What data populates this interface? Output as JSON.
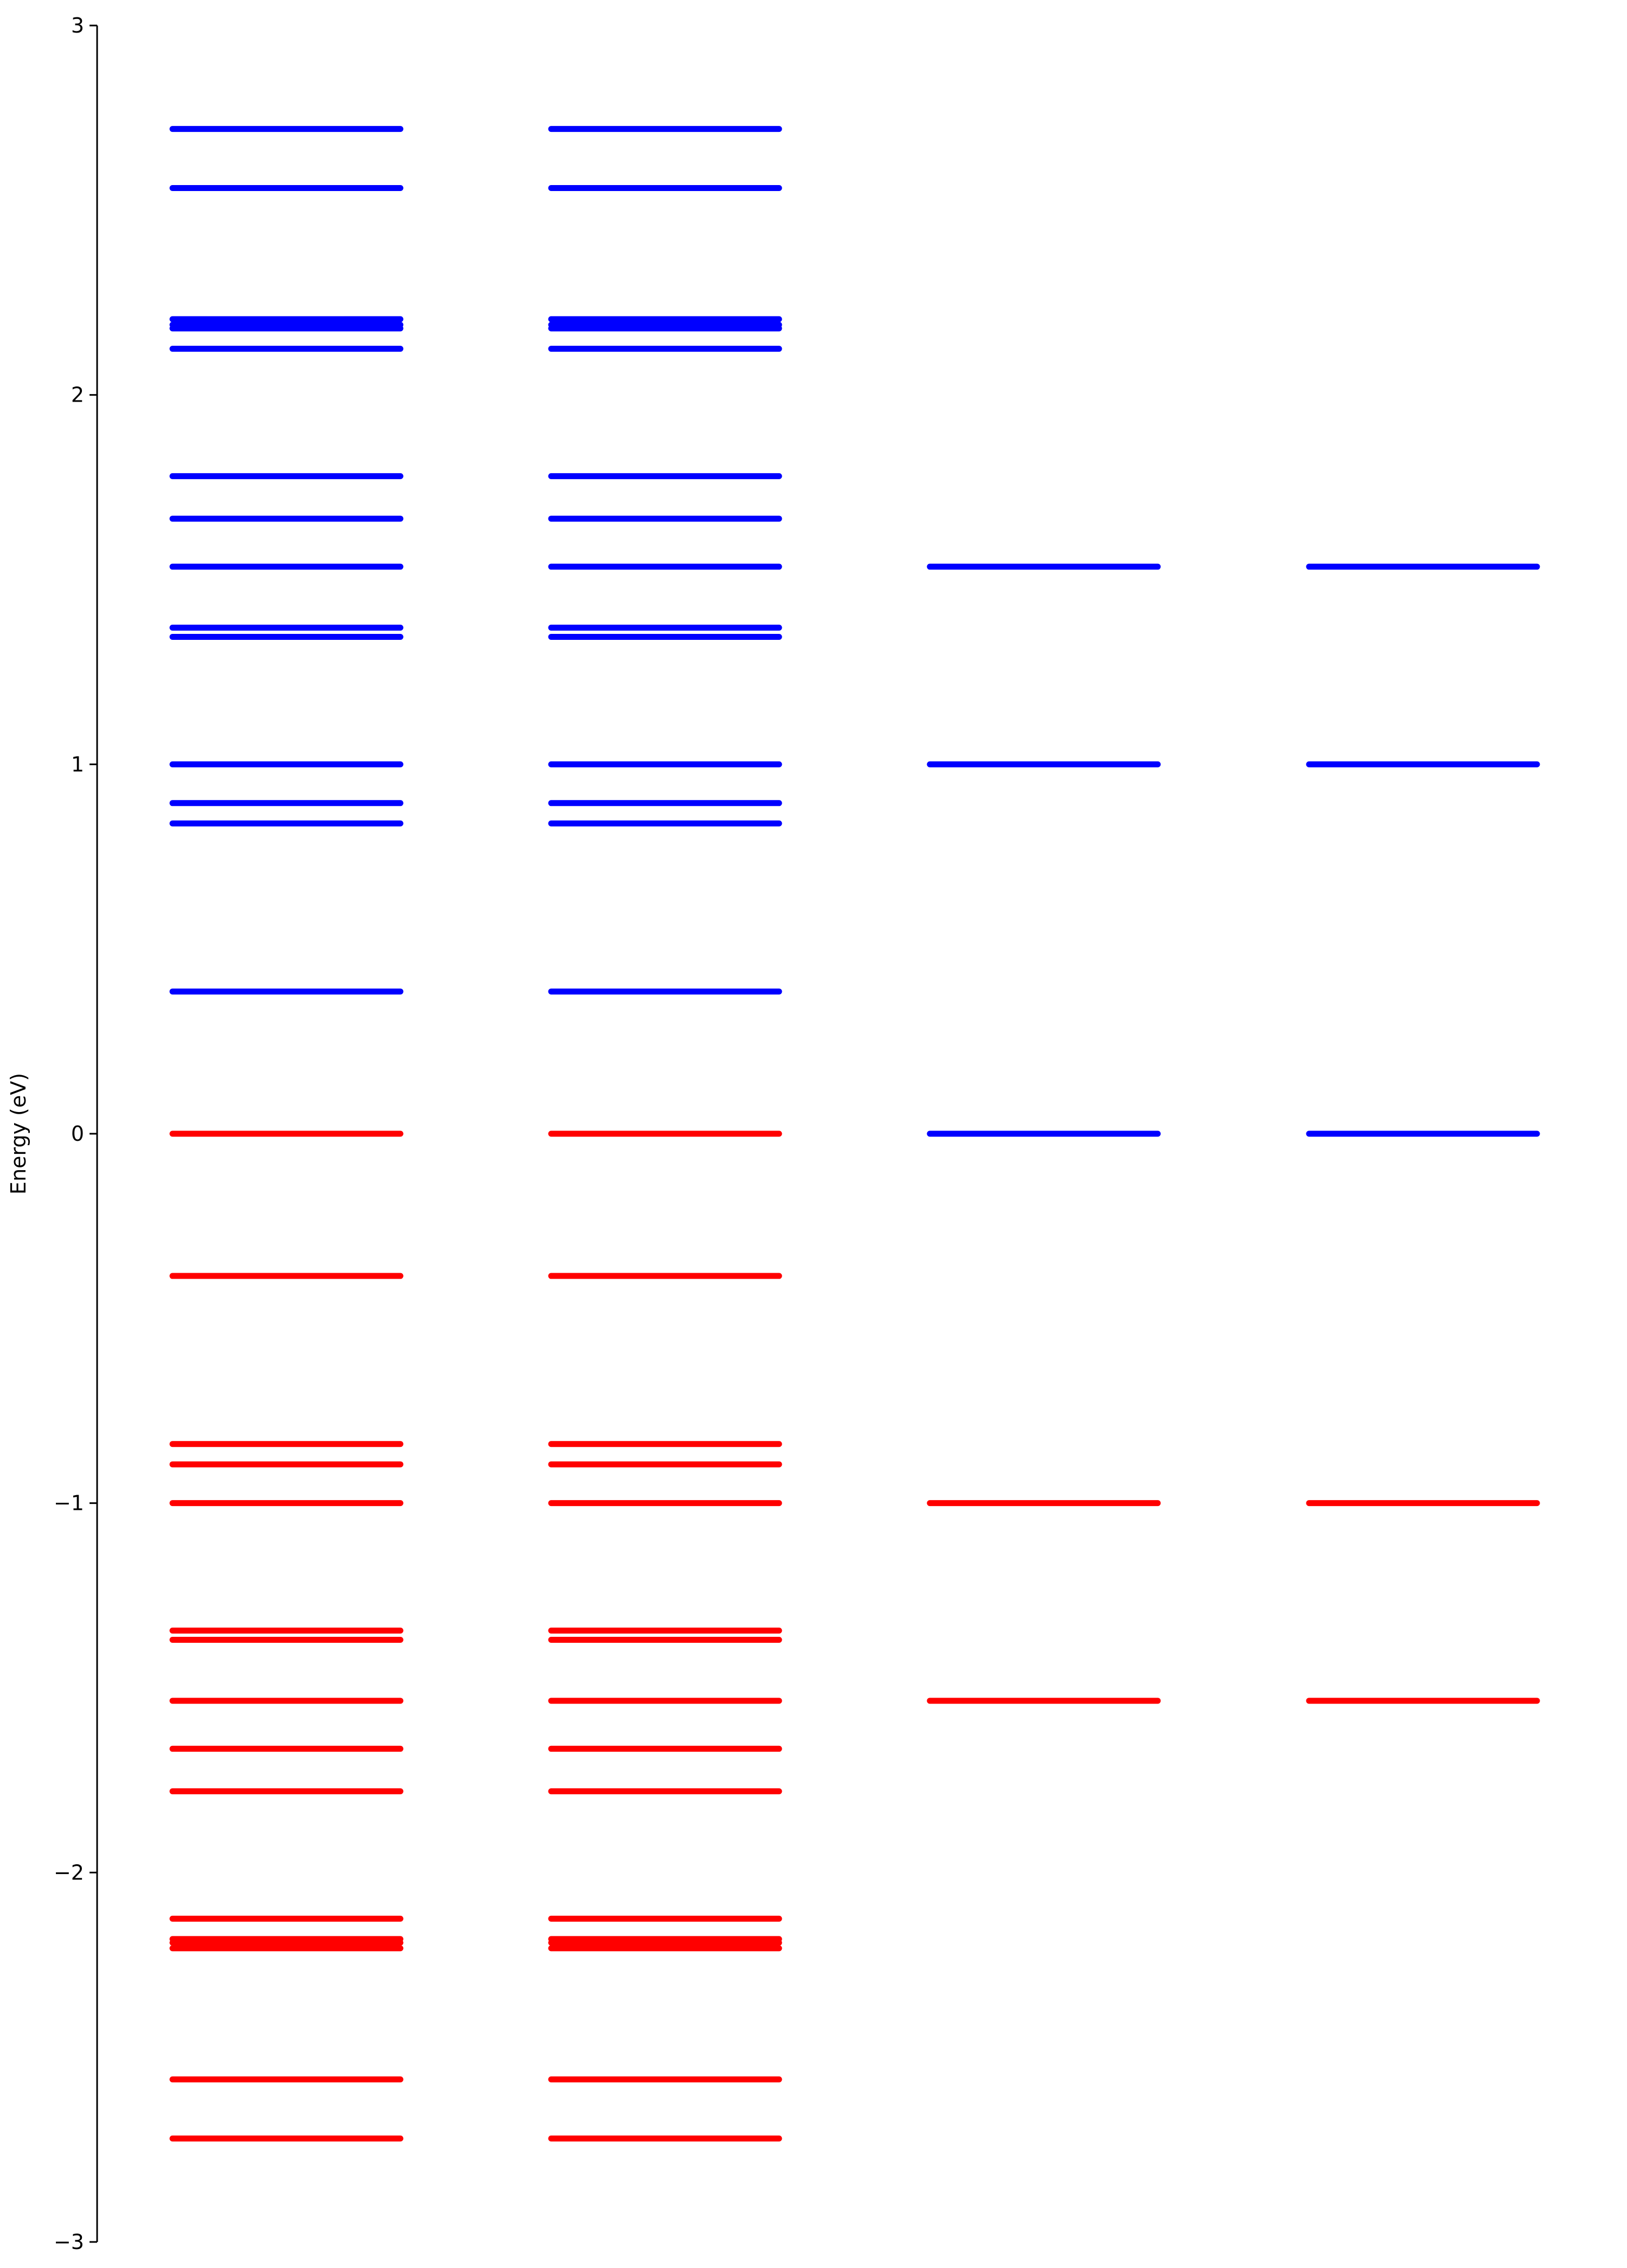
{
  "chart_data": {
    "type": "energy-level",
    "title": "",
    "xlabel": "",
    "ylabel": "Energy (eV)",
    "ylim": [
      -3,
      3
    ],
    "yticks": [
      {
        "value": 3,
        "label": "3"
      },
      {
        "value": 2,
        "label": "2"
      },
      {
        "value": 1,
        "label": "1"
      },
      {
        "value": 0,
        "label": "0"
      },
      {
        "value": -1,
        "label": "−1"
      },
      {
        "value": -2,
        "label": "−2"
      },
      {
        "value": -3,
        "label": "−3"
      }
    ],
    "grid": false,
    "legend": "none",
    "colors": {
      "unoccupied": "#0000ff",
      "occupied": "#ff0000",
      "axis": "#000000"
    },
    "columns": [
      {
        "unoccupied": [
          2.72,
          2.56,
          2.205,
          2.19,
          2.18,
          2.125,
          1.78,
          1.665,
          1.535,
          1.37,
          1.345,
          1.0,
          0.895,
          0.84,
          0.385
        ],
        "occupied": [
          0.0,
          -0.385,
          -0.84,
          -0.895,
          -1.0,
          -1.345,
          -1.37,
          -1.535,
          -1.665,
          -1.78,
          -2.125,
          -2.18,
          -2.19,
          -2.205,
          -2.56,
          -2.72
        ]
      },
      {
        "unoccupied": [
          2.72,
          2.56,
          2.205,
          2.19,
          2.18,
          2.125,
          1.78,
          1.665,
          1.535,
          1.37,
          1.345,
          1.0,
          0.895,
          0.84,
          0.385
        ],
        "occupied": [
          0.0,
          -0.385,
          -0.84,
          -0.895,
          -1.0,
          -1.345,
          -1.37,
          -1.535,
          -1.665,
          -1.78,
          -2.125,
          -2.18,
          -2.19,
          -2.205,
          -2.56,
          -2.72
        ]
      },
      {
        "unoccupied": [
          1.535,
          1.0,
          0.0
        ],
        "occupied": [
          -1.0,
          -1.535
        ]
      },
      {
        "unoccupied": [
          1.535,
          1.0,
          0.0
        ],
        "occupied": [
          -1.0,
          -1.535
        ]
      }
    ]
  }
}
